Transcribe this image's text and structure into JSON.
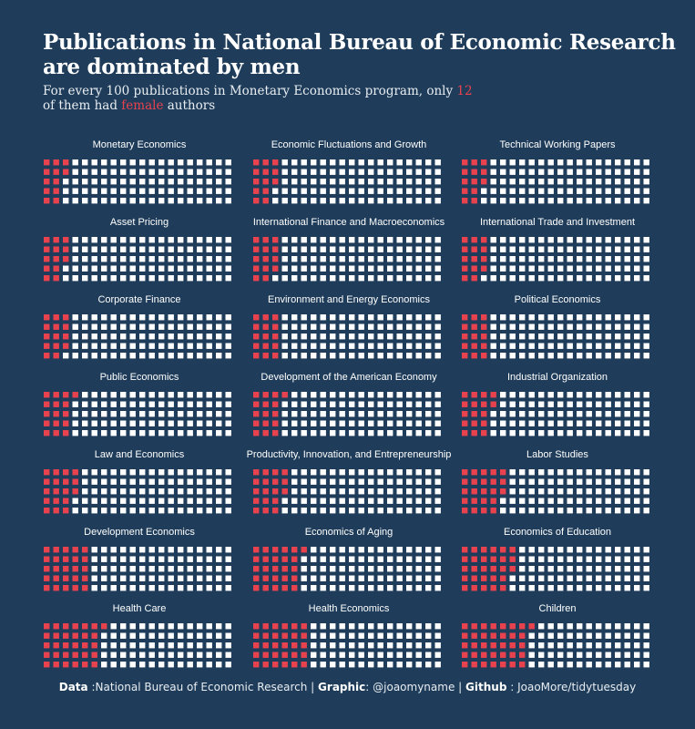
{
  "title_line1": "Publications in National Bureau of Economic Research",
  "title_line2": "are dominated by men",
  "subtitle": {
    "part1": "For every 100 publications in Monetary Economics program, only ",
    "highlight_number": "12",
    "part2": "of them had ",
    "highlight_word": "female",
    "part3": " authors"
  },
  "caption": {
    "data_label": "Data",
    "data_value": ":National Bureau  of Economic Research",
    "sep1": "|",
    "graphic_label": "Graphic",
    "graphic_value": ": @joaomyname",
    "sep2": "|",
    "github_label": "Github",
    "github_value": ": JoaoMore/tidytuesday"
  },
  "colors": {
    "background": "#1f3d5a",
    "female": "#e8424f",
    "male": "#ffffff"
  },
  "chart_data": {
    "type": "waffle",
    "units_per_panel": 100,
    "rows": 5,
    "columns": 20,
    "series": [
      {
        "name": "female",
        "color": "#e8424f"
      },
      {
        "name": "male",
        "color": "#ffffff"
      }
    ],
    "panels": [
      {
        "name": "Monetary Economics",
        "female": 12
      },
      {
        "name": "Economic Fluctuations and Growth",
        "female": 13
      },
      {
        "name": "Technical Working Papers",
        "female": 13
      },
      {
        "name": "Asset Pricing",
        "female": 13
      },
      {
        "name": "International Finance and Macroeconomics",
        "female": 14
      },
      {
        "name": "International Trade and Investment",
        "female": 14
      },
      {
        "name": "Corporate Finance",
        "female": 14
      },
      {
        "name": "Environment and Energy Economics",
        "female": 15
      },
      {
        "name": "Political Economics",
        "female": 15
      },
      {
        "name": "Public Economics",
        "female": 16
      },
      {
        "name": "Development of the American Economy",
        "female": 16
      },
      {
        "name": "Industrial Organization",
        "female": 17
      },
      {
        "name": "Law and Economics",
        "female": 18
      },
      {
        "name": "Productivity, Innovation, and Entrepreneurship",
        "female": 18
      },
      {
        "name": "Labor Studies",
        "female": 23
      },
      {
        "name": "Development Economics",
        "female": 25
      },
      {
        "name": "Economics of Aging",
        "female": 26
      },
      {
        "name": "Economics of Education",
        "female": 28
      },
      {
        "name": "Health Care",
        "female": 31
      },
      {
        "name": "Health Economics",
        "female": 30
      },
      {
        "name": "Children",
        "female": 36
      }
    ]
  }
}
